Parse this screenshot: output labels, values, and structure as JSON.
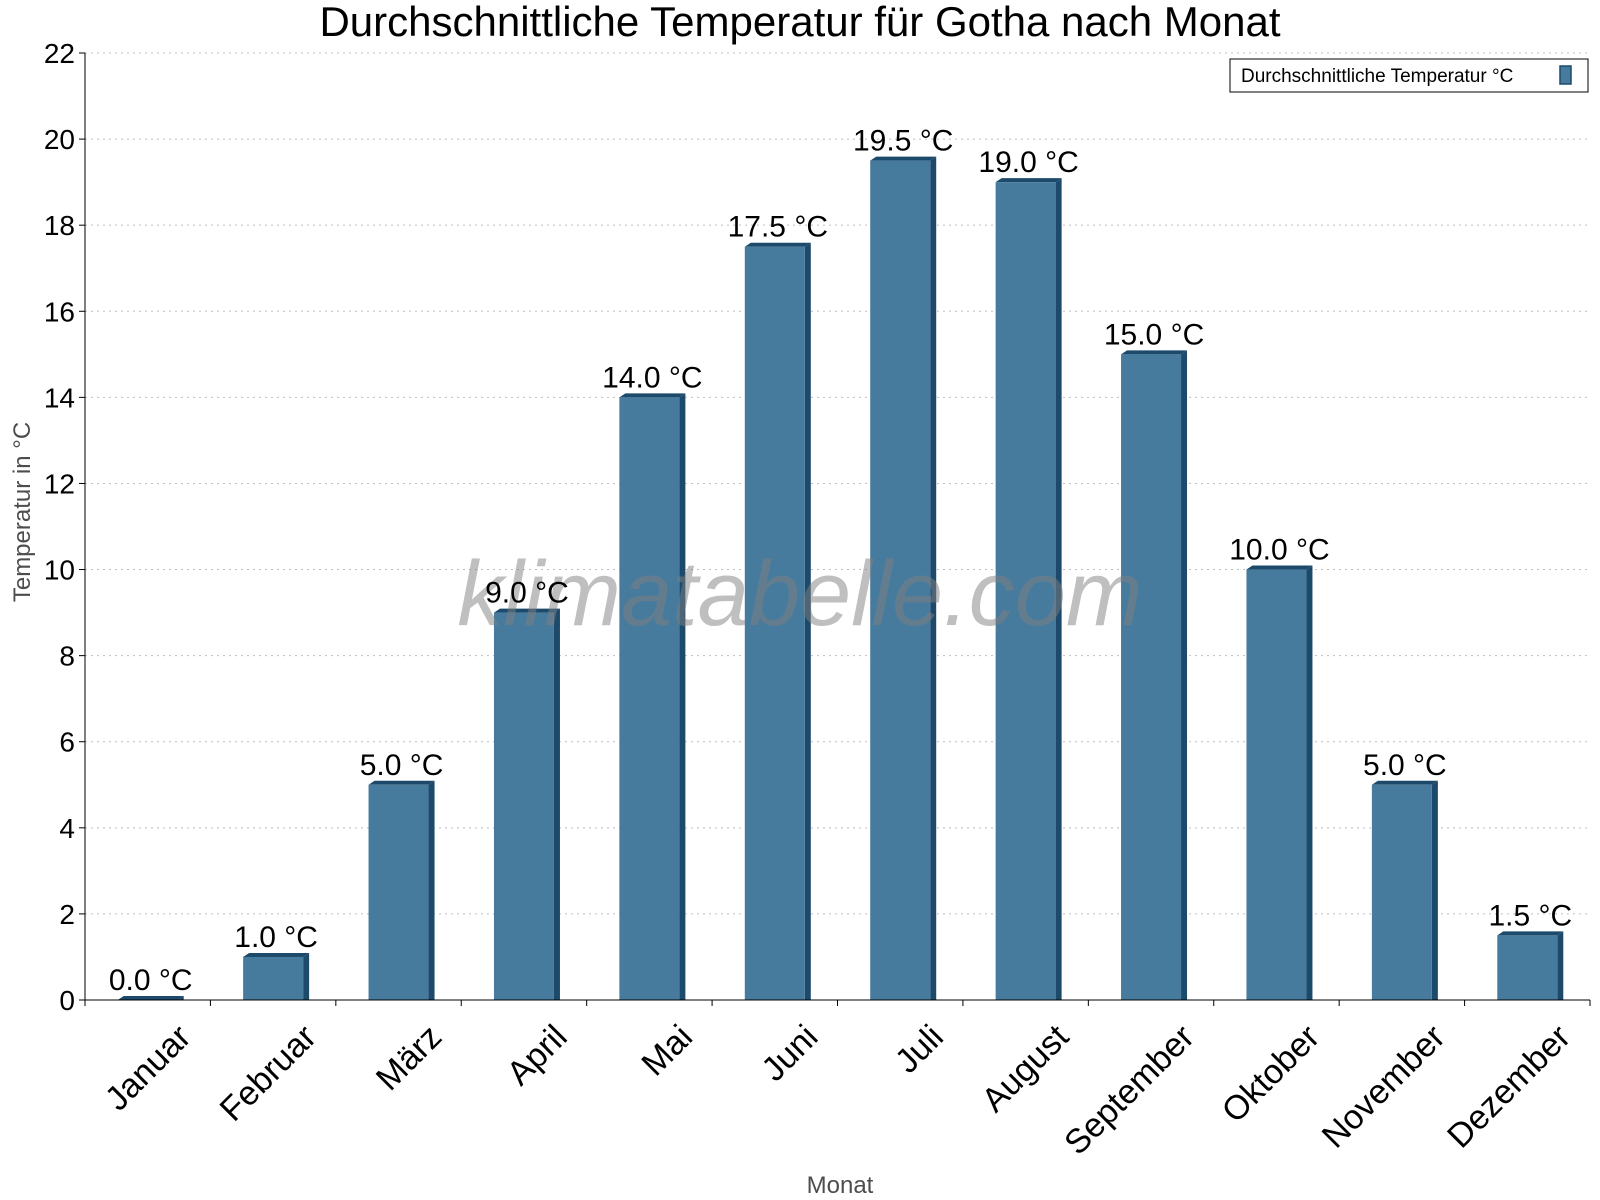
{
  "chart_data": {
    "type": "bar",
    "title": "Durchschnittliche Temperatur für Gotha nach Monat",
    "xlabel": "Monat",
    "ylabel": "Temperatur in °C",
    "ylim": [
      0,
      22
    ],
    "yticks": [
      0,
      2,
      4,
      6,
      8,
      10,
      12,
      14,
      16,
      18,
      20,
      22
    ],
    "grid": true,
    "legend_position": "top-right",
    "categories": [
      "Januar",
      "Februar",
      "März",
      "April",
      "Mai",
      "Juni",
      "Juli",
      "August",
      "September",
      "Oktober",
      "November",
      "Dezember"
    ],
    "series": [
      {
        "name": "Durchschnittliche Temperatur °C",
        "values": [
          0.0,
          1.0,
          5.0,
          9.0,
          14.0,
          17.5,
          19.5,
          19.0,
          15.0,
          10.0,
          5.0,
          1.5
        ],
        "labels": [
          "0.0 °C",
          "1.0 °C",
          "5.0 °C",
          "9.0 °C",
          "14.0 °C",
          "17.5 °C",
          "19.5 °C",
          "19.0 °C",
          "15.0 °C",
          "10.0 °C",
          "5.0 °C",
          "1.5 °C"
        ],
        "color": "#467b9e",
        "side_color": "#1d4a6b"
      }
    ],
    "watermark": "klimatabelle.com"
  }
}
